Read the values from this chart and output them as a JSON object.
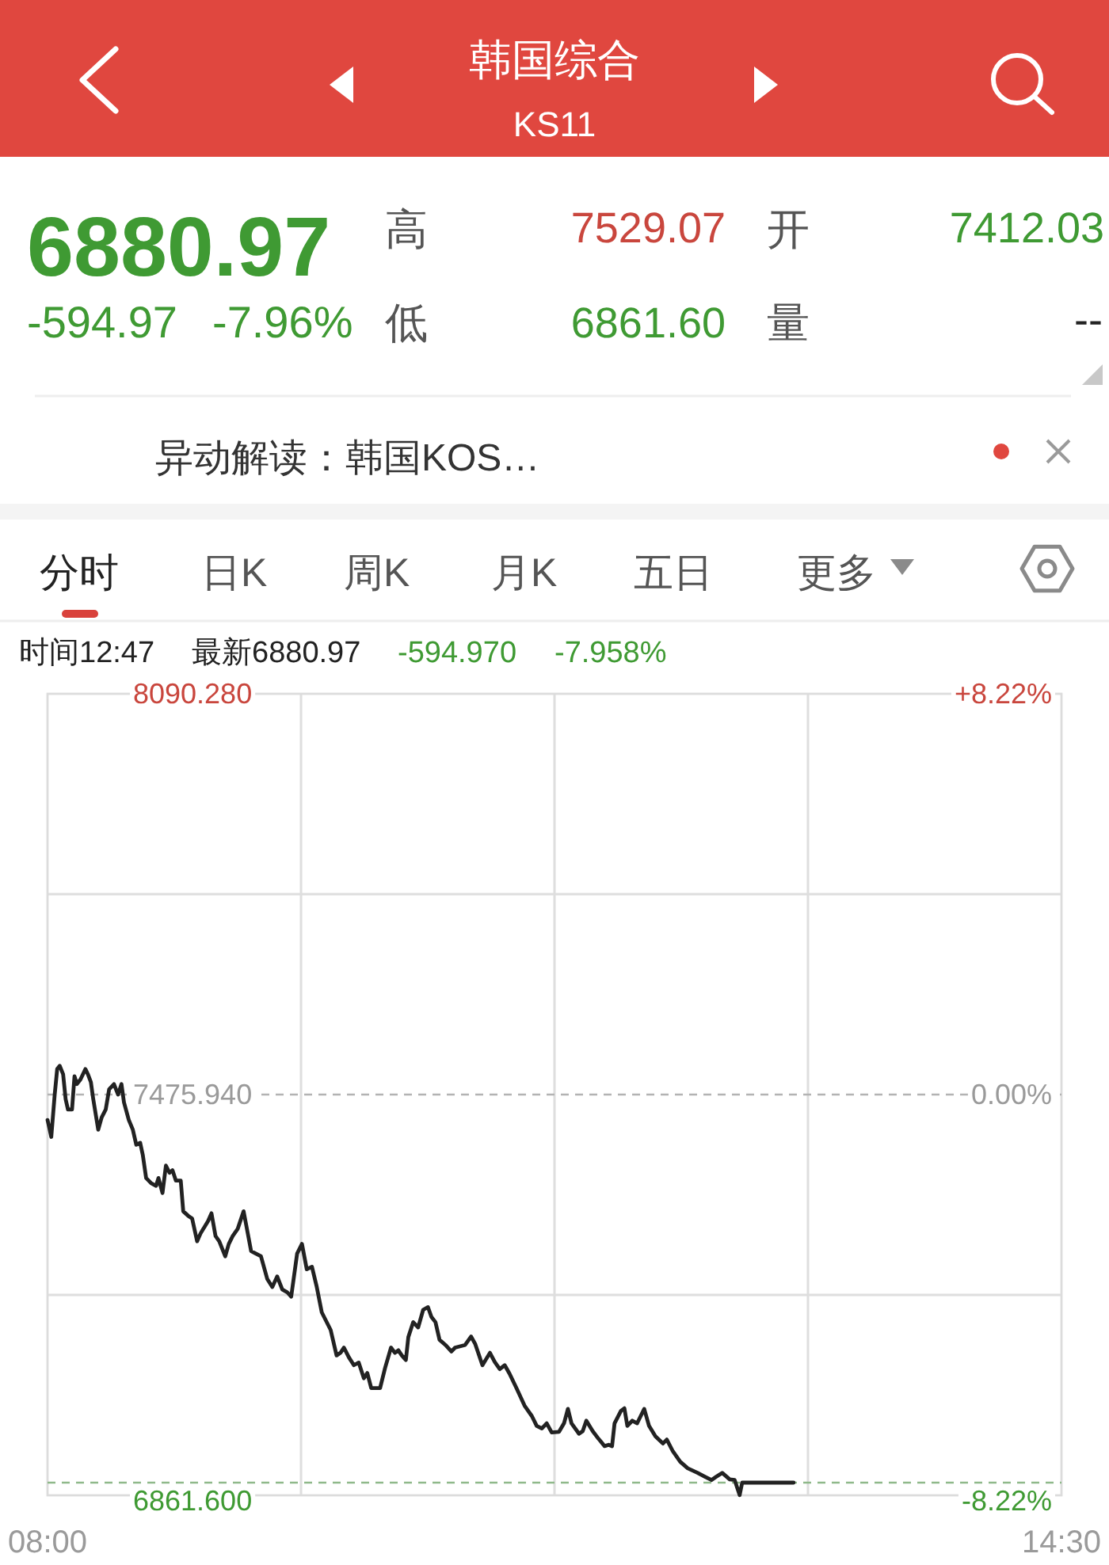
{
  "chart_data": {
    "type": "line",
    "title": "韩国综合",
    "subtitle": "KS11",
    "annotations": [
      "6880.97",
      "-594.97",
      "-7.96%",
      "高",
      "7529.07",
      "开",
      "7412.03",
      "低",
      "6861.60",
      "量",
      "--",
      "异动解读：韩国KOS…",
      "分时",
      "日K",
      "周K",
      "月K",
      "五日",
      "更多",
      "时间12:47",
      "最新6880.97",
      "-594.970",
      "-7.958%"
    ],
    "x": [
      8.0,
      8.024,
      8.046,
      8.062,
      8.078,
      8.1,
      8.116,
      8.131,
      8.157,
      8.173,
      8.188,
      8.211,
      8.243,
      8.259,
      8.278,
      8.293,
      8.325,
      8.347,
      8.373,
      8.395,
      8.426,
      8.452,
      8.474,
      8.49,
      8.521,
      8.547,
      8.569,
      8.594,
      8.611,
      8.632,
      8.664,
      8.696,
      8.711,
      8.737,
      8.759,
      8.782,
      8.801,
      8.823,
      8.854,
      8.87,
      8.902,
      8.927,
      8.959,
      8.981,
      9.029,
      9.051,
      9.077,
      9.101,
      9.139,
      9.162,
      9.187,
      9.219,
      9.257,
      9.305,
      9.336,
      9.368,
      9.409,
      9.441,
      9.472,
      9.505,
      9.536,
      9.562,
      9.6,
      9.631,
      9.662,
      9.695,
      9.726,
      9.758,
      9.815,
      9.853,
      9.878,
      9.9,
      9.932,
      9.964,
      9.995,
      10.028,
      10.05,
      10.075,
      10.132,
      10.164,
      10.202,
      10.227,
      10.249,
      10.271,
      10.297,
      10.313,
      10.344,
      10.376,
      10.408,
      10.439,
      10.461,
      10.487,
      10.513,
      10.551,
      10.589,
      10.613,
      10.677,
      10.715,
      10.741,
      10.788,
      10.836,
      10.867,
      10.899,
      10.931,
      10.962,
      11.01,
      11.058,
      11.105,
      11.136,
      11.169,
      11.2,
      11.232,
      11.279,
      11.311,
      11.336,
      11.359,
      11.407,
      11.431,
      11.454,
      11.495,
      11.533,
      11.571,
      11.597,
      11.619,
      11.635,
      11.676,
      11.698,
      11.717,
      11.749,
      11.78,
      11.825,
      11.856,
      11.897,
      11.945,
      11.97,
      12.009,
      12.056,
      12.104,
      12.167,
      12.215,
      12.256,
      12.287,
      12.325,
      12.373,
      12.405,
      12.437,
      12.453,
      12.783
    ],
    "values": [
      7437,
      7411,
      7476,
      7515,
      7520,
      7507,
      7469,
      7453,
      7453,
      7504,
      7492,
      7499,
      7515,
      7507,
      7495,
      7469,
      7422,
      7441,
      7453,
      7484,
      7492,
      7476,
      7492,
      7464,
      7437,
      7422,
      7399,
      7402,
      7383,
      7348,
      7340,
      7336,
      7348,
      7325,
      7367,
      7356,
      7360,
      7344,
      7344,
      7297,
      7290,
      7286,
      7251,
      7263,
      7282,
      7294,
      7259,
      7251,
      7228,
      7247,
      7259,
      7270,
      7297,
      7236,
      7232,
      7228,
      7193,
      7181,
      7197,
      7177,
      7173,
      7166,
      7232,
      7247,
      7208,
      7212,
      7181,
      7142,
      7115,
      7076,
      7080,
      7088,
      7073,
      7061,
      7065,
      7041,
      7049,
      7026,
      7026,
      7057,
      7088,
      7080,
      7084,
      7076,
      7069,
      7104,
      7127,
      7119,
      7146,
      7150,
      7135,
      7127,
      7100,
      7092,
      7082,
      7088,
      7092,
      7105,
      7094,
      7061,
      7080,
      7066,
      7055,
      7061,
      7048,
      7024,
      6999,
      6983,
      6968,
      6964,
      6972,
      6958,
      6959,
      6972,
      6994,
      6972,
      6956,
      6960,
      6976,
      6960,
      6948,
      6937,
      6939,
      6937,
      6972,
      6991,
      6995,
      6968,
      6976,
      6972,
      6994,
      6968,
      6952,
      6941,
      6947,
      6929,
      6913,
      6903,
      6896,
      6890,
      6885,
      6890,
      6896,
      6886,
      6885,
      6862,
      6881,
      6881
    ],
    "color": "#222222",
    "xlim": [
      8,
      14.5
    ],
    "xticks": [
      {
        "value": 8,
        "label": "08:00"
      },
      {
        "value": 9.625,
        "label": null
      },
      {
        "value": 11.25,
        "label": null
      },
      {
        "value": 12.875,
        "label": null
      },
      {
        "value": 14.5,
        "label": "14:30"
      }
    ],
    "ylim": [
      6861.6,
      8090.28
    ],
    "yticks": [
      {
        "value": 8090.28,
        "label": "8090.280"
      },
      {
        "value": 7783.11,
        "label": null
      },
      {
        "value": 7475.94,
        "label": "7475.940"
      },
      {
        "value": 7168.77,
        "label": null
      },
      {
        "value": 6861.6,
        "label": "6861.600"
      }
    ],
    "y2lim": [
      -8.22,
      8.22
    ],
    "y2ticks": [
      {
        "value": 8.22,
        "label": "+8.22%"
      },
      {
        "value": 0,
        "label": "0.00%"
      },
      {
        "value": -8.22,
        "label": "-8.22%"
      }
    ],
    "ref_lines": [
      {
        "axis": "y",
        "value": 7475.94,
        "color": "#b3b3b3",
        "line_style": "dashed"
      },
      {
        "axis": "y",
        "value": 6880.97,
        "color": "#8fb98a",
        "line_style": "dashed"
      }
    ],
    "grid": true
  }
}
